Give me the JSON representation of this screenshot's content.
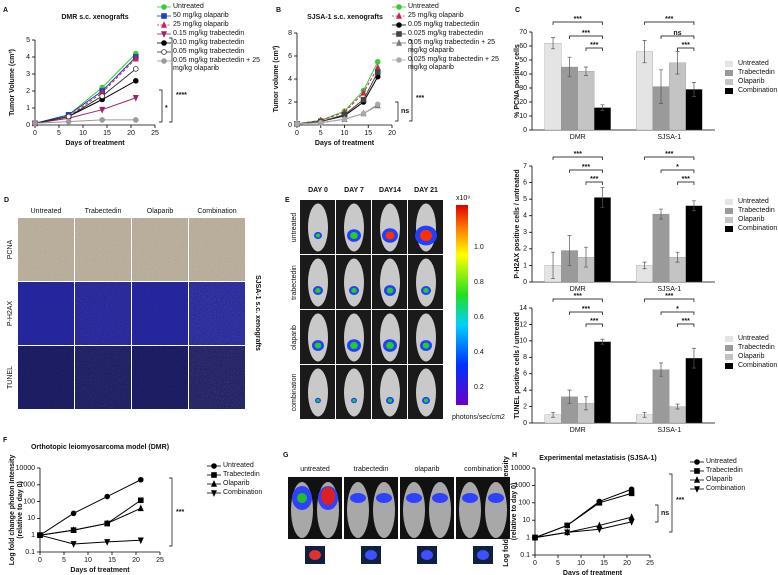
{
  "chart_data": [
    {
      "type": "line",
      "title": "DMR s.c. xenografts",
      "x_label": "Days of treatment",
      "y_label": "Tumor Volume (cm³)",
      "x": [
        0,
        7,
        14,
        21
      ],
      "xlim": [
        0,
        25
      ],
      "xticks": [
        0,
        5,
        10,
        15,
        20,
        25
      ],
      "ylim": [
        0,
        5
      ],
      "yticks": [
        0,
        1,
        2,
        3,
        4,
        5
      ],
      "series": [
        {
          "name": "Untreated",
          "color": "#3cc83c",
          "marker": "circle",
          "values": [
            0.1,
            0.6,
            2.2,
            4.2
          ]
        },
        {
          "name": "50 mg/kg olaparib",
          "color": "#1f3fbf",
          "marker": "square",
          "values": [
            0.1,
            0.6,
            2.0,
            4.0
          ]
        },
        {
          "name": "25 mg/kg olaparib",
          "color": "#d02050",
          "marker": "triangle",
          "line_style": "dashed",
          "values": [
            0.1,
            0.5,
            1.9,
            3.9
          ]
        },
        {
          "name": "0.15 mg/kg trabectedin",
          "color": "#a0206a",
          "marker": "triangle-down",
          "values": [
            0.1,
            0.4,
            0.9,
            1.6
          ]
        },
        {
          "name": "0.10 mg/kg trabectedin",
          "color": "#000000",
          "marker": "circle",
          "values": [
            0.1,
            0.5,
            1.5,
            2.6
          ]
        },
        {
          "name": "0.05 mg/kg trabectedin",
          "color": "#333333",
          "marker": "circle-open",
          "values": [
            0.1,
            0.5,
            1.7,
            3.3
          ]
        },
        {
          "name": "0.05 mg/kg trabectedin + 25 mg/kg olaparib",
          "color": "#999999",
          "marker": "circle",
          "values": [
            0.1,
            0.2,
            0.3,
            0.3
          ]
        }
      ],
      "annotations": [
        "*",
        "****"
      ]
    },
    {
      "type": "line",
      "title": "SJSA-1 s.c. xenografts",
      "x_label": "Days of treatment",
      "y_label": "Tumor volume (cm³)",
      "x": [
        0,
        5,
        10,
        14,
        17
      ],
      "xlim": [
        0,
        20
      ],
      "xticks": [
        0,
        5,
        10,
        15,
        20
      ],
      "ylim": [
        0,
        8
      ],
      "yticks": [
        0,
        2,
        4,
        6,
        8
      ],
      "series": [
        {
          "name": "Untreated",
          "color": "#3cc83c",
          "marker": "circle",
          "values": [
            0.1,
            0.4,
            1.2,
            3.0,
            5.5
          ]
        },
        {
          "name": "25 mg/kg olaparib",
          "color": "#d02050",
          "marker": "triangle",
          "line_style": "dashed",
          "values": [
            0.1,
            0.4,
            1.1,
            2.8,
            5.0
          ]
        },
        {
          "name": "0.05 mg/kg trabectedin",
          "color": "#000000",
          "marker": "circle",
          "values": [
            0.1,
            0.3,
            0.8,
            2.0,
            4.2
          ]
        },
        {
          "name": "0.025 mg/kg trabectedin",
          "color": "#444444",
          "marker": "square",
          "values": [
            0.1,
            0.3,
            0.9,
            2.2,
            4.6
          ]
        },
        {
          "name": "0.05 mg/kg trabectedin + 25 mg/kg olaparib",
          "color": "#777777",
          "marker": "triangle",
          "values": [
            0.1,
            0.2,
            0.5,
            1.0,
            1.7
          ]
        },
        {
          "name": "0.025 mg/kg trabectedin + 25 mg/kg olaparib",
          "color": "#aaaaaa",
          "marker": "circle",
          "values": [
            0.1,
            0.2,
            0.5,
            1.0,
            1.8
          ]
        }
      ],
      "annotations": [
        "ns",
        "***"
      ]
    },
    {
      "type": "bar",
      "y_label": "% PCNA positive cells",
      "categories": [
        "DMR",
        "SJSA-1"
      ],
      "ylim": [
        0,
        70
      ],
      "yticks": [
        0,
        10,
        20,
        30,
        40,
        50,
        60,
        70
      ],
      "series": [
        {
          "name": "Untreated",
          "color": "#e4e4e4",
          "values": [
            62,
            56
          ],
          "errors": [
            4,
            8
          ]
        },
        {
          "name": "Trabectedin",
          "color": "#9a9a9a",
          "values": [
            45,
            31
          ],
          "errors": [
            7,
            12
          ]
        },
        {
          "name": "Olaparib",
          "color": "#c4c4c4",
          "values": [
            42,
            48
          ],
          "errors": [
            3,
            8
          ]
        },
        {
          "name": "Combination",
          "color": "#000000",
          "values": [
            16,
            29
          ],
          "errors": [
            2,
            5
          ]
        }
      ],
      "annotations": [
        "***",
        "***",
        "***",
        "***",
        "ns",
        "***"
      ]
    },
    {
      "type": "bar",
      "y_label": "P-H2AX positive cells / untreated",
      "categories": [
        "DMR",
        "SJSA-1"
      ],
      "ylim": [
        0,
        7
      ],
      "yticks": [
        0,
        1,
        2,
        3,
        4,
        5,
        6,
        7
      ],
      "series": [
        {
          "name": "Untreated",
          "color": "#e4e4e4",
          "values": [
            1,
            1
          ],
          "errors": [
            0.8,
            0.2
          ]
        },
        {
          "name": "Trabectedin",
          "color": "#9a9a9a",
          "values": [
            1.9,
            4.1
          ],
          "errors": [
            0.9,
            0.3
          ]
        },
        {
          "name": "Olaparib",
          "color": "#c4c4c4",
          "values": [
            1.5,
            1.5
          ],
          "errors": [
            0.6,
            0.3
          ]
        },
        {
          "name": "Combination",
          "color": "#000000",
          "values": [
            5.1,
            4.6
          ],
          "errors": [
            0.6,
            0.3
          ]
        }
      ],
      "annotations": [
        "***",
        "***",
        "***",
        "***",
        "*",
        "***"
      ]
    },
    {
      "type": "bar",
      "y_label": "TUNEL positive cells / untreated",
      "categories": [
        "DMR",
        "SJSA-1"
      ],
      "ylim": [
        0,
        14
      ],
      "yticks": [
        0,
        2,
        4,
        6,
        8,
        10,
        12,
        14
      ],
      "series": [
        {
          "name": "Untreated",
          "color": "#e4e4e4",
          "values": [
            1,
            1
          ],
          "errors": [
            0.3,
            0.3
          ]
        },
        {
          "name": "Trabectedin",
          "color": "#9a9a9a",
          "values": [
            3.2,
            6.5
          ],
          "errors": [
            0.8,
            0.8
          ]
        },
        {
          "name": "Olaparib",
          "color": "#c4c4c4",
          "values": [
            2.4,
            2.0
          ],
          "errors": [
            0.8,
            0.3
          ]
        },
        {
          "name": "Combination",
          "color": "#000000",
          "values": [
            9.9,
            7.9
          ],
          "errors": [
            0.3,
            1.2
          ]
        }
      ],
      "annotations": [
        "***",
        "***",
        "***",
        "***",
        "*",
        "***"
      ]
    },
    {
      "type": "line",
      "title": "Orthotopic leiomyosarcoma model (DMR)",
      "x_label": "Days of treatment",
      "y_label": [
        "Log fold change photon Intensity",
        "(relative to day 0)"
      ],
      "log_y": true,
      "x": [
        0,
        7,
        14,
        21
      ],
      "xlim": [
        0,
        25
      ],
      "xticks": [
        0,
        5,
        10,
        15,
        20,
        25
      ],
      "ylim": [
        0.1,
        10000
      ],
      "yticks": [
        0.1,
        1,
        10,
        100,
        1000,
        10000
      ],
      "series": [
        {
          "name": "Untreated",
          "color": "#000000",
          "marker": "circle",
          "values": [
            1,
            20,
            200,
            2000
          ]
        },
        {
          "name": "Trabectedin",
          "color": "#000000",
          "marker": "square",
          "values": [
            1,
            2,
            5,
            120
          ]
        },
        {
          "name": "Olaparib",
          "color": "#000000",
          "marker": "triangle",
          "values": [
            1,
            2,
            5,
            40
          ]
        },
        {
          "name": "Combination",
          "color": "#000000",
          "marker": "triangle-down",
          "values": [
            1,
            0.3,
            0.4,
            0.5
          ]
        }
      ],
      "annotations": [
        "***"
      ]
    },
    {
      "type": "line",
      "title": "Experimental metastatisis (SJSA-1)",
      "x_label": "Days of treatment",
      "y_label": [
        "Log fold change photon Intensity",
        "(relative to day 0)"
      ],
      "log_y": true,
      "x": [
        0,
        7,
        14,
        21
      ],
      "xlim": [
        0,
        25
      ],
      "xticks": [
        0,
        5,
        10,
        15,
        20,
        25
      ],
      "ylim": [
        0.1,
        10000
      ],
      "yticks": [
        0.1,
        1,
        10,
        100,
        1000,
        10000
      ],
      "series": [
        {
          "name": "Untreated",
          "color": "#000000",
          "marker": "circle",
          "values": [
            1,
            5,
            120,
            600
          ]
        },
        {
          "name": "Trabectedin",
          "color": "#000000",
          "marker": "square",
          "values": [
            1,
            5,
            100,
            350
          ]
        },
        {
          "name": "Olaparib",
          "color": "#000000",
          "marker": "triangle",
          "values": [
            1,
            2,
            5,
            15
          ]
        },
        {
          "name": "Combination",
          "color": "#000000",
          "marker": "triangle-down",
          "values": [
            1,
            2,
            3,
            8
          ]
        }
      ],
      "annotations": [
        "ns",
        "***"
      ]
    }
  ],
  "panel_letters": [
    "A",
    "B",
    "C",
    "D",
    "E",
    "F",
    "G",
    "H"
  ],
  "image_panels": {
    "D": {
      "columns": [
        "Untreated",
        "Trabectedin",
        "Olaparib",
        "Combination"
      ],
      "rows": [
        "PCNA",
        "P-H2AX",
        "TUNEL"
      ],
      "side_label": "SJSA-1 s.c. xenografts"
    },
    "E": {
      "columns": [
        "DAY 0",
        "DAY 7",
        "DAY14",
        "DAY 21"
      ],
      "rows": [
        "untreated",
        "trabectedin",
        "olaparib",
        "combination"
      ],
      "scale_exponent": "x10⁹",
      "scale_ticks": [
        "1.0",
        "0.8",
        "0.6",
        "0.4",
        "0.2"
      ],
      "scale_label": "photons/sec/cm2"
    },
    "G": {
      "columns": [
        "untreated",
        "trabectedin",
        "olaparib",
        "combination"
      ]
    }
  }
}
